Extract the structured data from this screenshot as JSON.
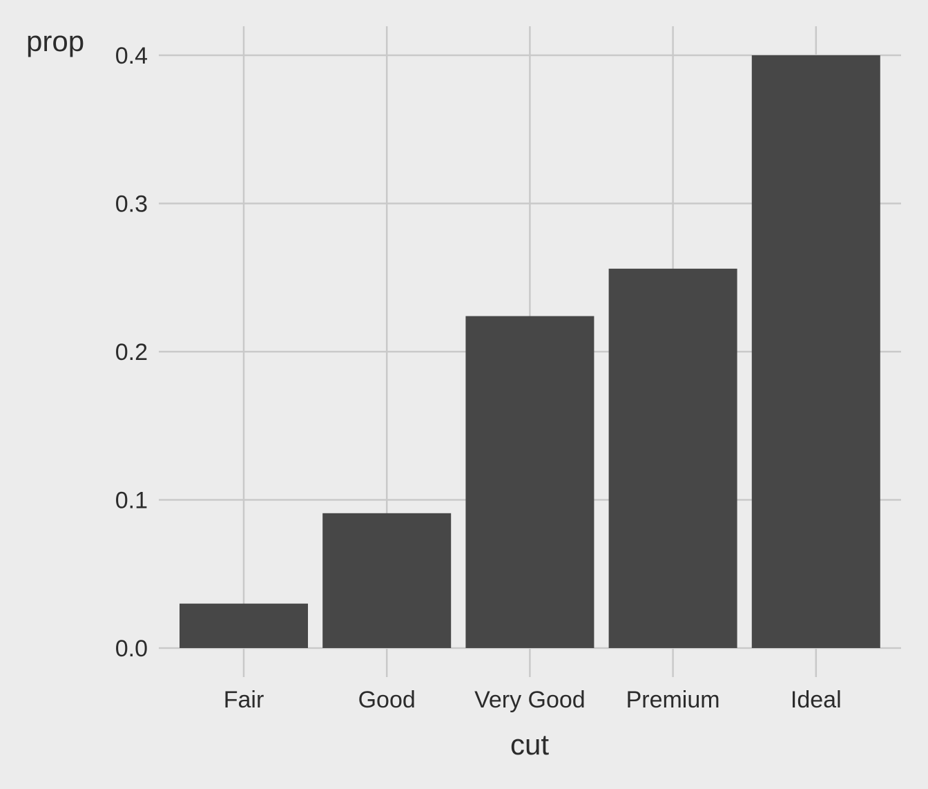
{
  "chart_data": {
    "type": "bar",
    "title": "",
    "xlabel": "cut",
    "ylabel": "prop",
    "categories": [
      "Fair",
      "Good",
      "Very Good",
      "Premium",
      "Ideal"
    ],
    "values": [
      0.03,
      0.091,
      0.224,
      0.256,
      0.4
    ],
    "ylim": [
      0,
      0.4
    ],
    "yticks": [
      0.0,
      0.1,
      0.2,
      0.3,
      0.4
    ],
    "ytick_labels": [
      "0.0",
      "0.1",
      "0.2",
      "0.3",
      "0.4"
    ],
    "grid": true,
    "legend": "none",
    "colors": {
      "background": "#ececec",
      "bar": "#474747",
      "grid": "#c9c9c9",
      "text": "#2b2b2b"
    }
  }
}
